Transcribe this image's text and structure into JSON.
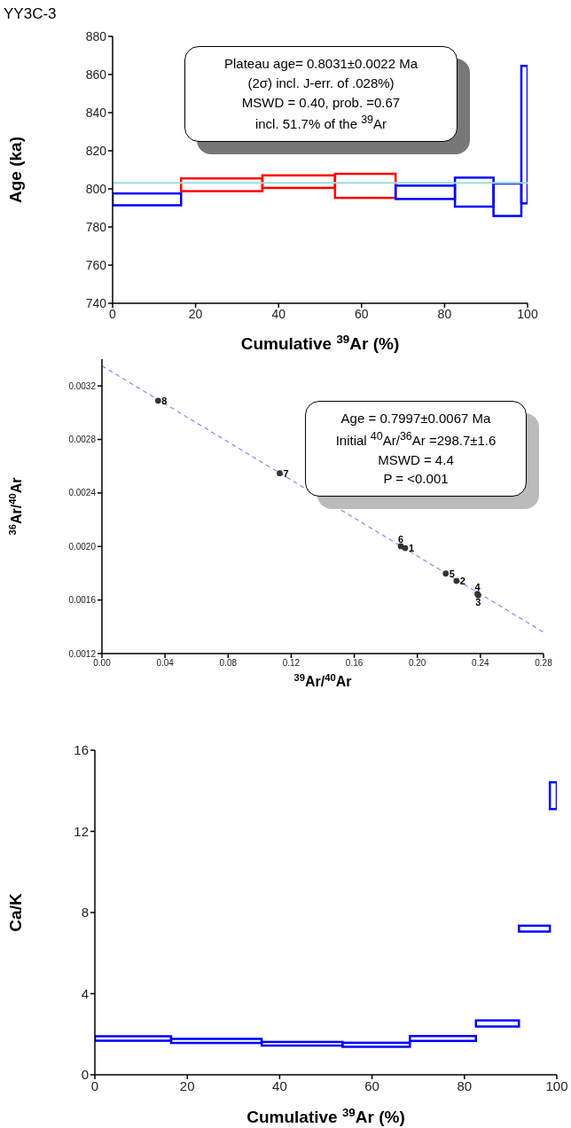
{
  "chart_data": [
    {
      "type": "histogram",
      "title": "YY3C-3",
      "xlabel": "Cumulative $^{39}$Ar (%)",
      "ylabel": "Age (ka)",
      "bins": [
        0,
        16.5,
        36.1,
        53.6,
        68.2,
        82.5,
        91.8,
        98.5,
        100
      ],
      "base": [
        791.4,
        798.8,
        800.5,
        795.3,
        794.7,
        790.7,
        785.8,
        792.4
      ],
      "values": [
        6.2,
        6.7,
        6.6,
        12.6,
        7.0,
        15.2,
        17.0,
        72.1
      ],
      "colors": [
        "#0000ff",
        "#ff0000",
        "#ff0000",
        "#ff0000",
        "#0000ff",
        "#0000ff",
        "#0000ff",
        "#0000ff"
      ],
      "xlim": [
        0,
        100
      ],
      "xticks": [
        0,
        20,
        40,
        60,
        80,
        100
      ],
      "ylim": [
        740,
        880
      ],
      "yticks": [
        740,
        760,
        780,
        800,
        820,
        840,
        860,
        880
      ],
      "ref_lines": [
        {
          "axis": "y",
          "value": 803.1,
          "color": "#99dddd"
        }
      ],
      "annotations": [
        "Plateau age= 0.8031±0.0022 Ma",
        "(2σ) incl. J-err. of .028%)",
        "MSWD = 0.40, prob. =0.67",
        "incl. 51.7% of the $^{39}$Ar"
      ]
    },
    {
      "type": "scatter",
      "xlabel": "$^{39}$Ar/$^{40}$Ar",
      "ylabel": "$^{36}$Ar/$^{40}$Ar",
      "series": [
        {
          "type": "scatter",
          "marker": "circle",
          "color": "#333333",
          "x": [
            0.1923,
            0.2248,
            0.2386,
            0.2381,
            0.218,
            0.1895,
            0.1127,
            0.0356
          ],
          "values": [
            0.001988,
            0.001743,
            0.001635,
            0.001646,
            0.001798,
            0.002002,
            0.002547,
            0.00309
          ]
        },
        {
          "type": "line",
          "color": "#8888ee",
          "line_style": "dashed",
          "x": [
            0,
            0.28
          ],
          "values": [
            0.00335,
            0.00136
          ]
        }
      ],
      "xlim": [
        0,
        0.28
      ],
      "xticks": [
        {
          "value": 0,
          "label": "0.00"
        },
        {
          "value": 0.04,
          "label": "0.04"
        },
        {
          "value": 0.08,
          "label": "0.08"
        },
        {
          "value": 0.12,
          "label": "0.12"
        },
        {
          "value": 0.16,
          "label": "0.16"
        },
        {
          "value": 0.2,
          "label": "0.20"
        },
        {
          "value": 0.24,
          "label": "0.24"
        },
        {
          "value": 0.28,
          "label": "0.28"
        }
      ],
      "ylim": [
        0.0012,
        0.0034
      ],
      "yticks": [
        {
          "value": 0.0012,
          "label": "0.0012"
        },
        {
          "value": 0.0016,
          "label": "0.0016"
        },
        {
          "value": 0.002,
          "label": "0.0020"
        },
        {
          "value": 0.0024,
          "label": "0.0024"
        },
        {
          "value": 0.0028,
          "label": "0.0028"
        },
        {
          "value": 0.0032,
          "label": "0.0032"
        }
      ],
      "annotations": [
        "Age = 0.7997±0.0067 Ma",
        "Initial $^{40}$Ar/$^{36}$Ar =298.7±1.6",
        "MSWD = 4.4",
        "P = <0.001",
        {
          "text": "1",
          "x": 0.1923,
          "y": 0.001988
        },
        {
          "text": "2",
          "x": 0.2248,
          "y": 0.001743
        },
        {
          "text": "3",
          "x": 0.2386,
          "y": 0.001635
        },
        {
          "text": "4",
          "x": 0.2381,
          "y": 0.001646
        },
        {
          "text": "5",
          "x": 0.218,
          "y": 0.001798
        },
        {
          "text": "6",
          "x": 0.1895,
          "y": 0.002002
        },
        {
          "text": "7",
          "x": 0.1127,
          "y": 0.002547
        },
        {
          "text": "8",
          "x": 0.0356,
          "y": 0.00309
        }
      ]
    },
    {
      "type": "histogram",
      "xlabel": "Cumulative $^{39}$Ar (%)",
      "ylabel": "Ca/K",
      "bins": [
        0,
        16.5,
        36.1,
        53.6,
        68.2,
        82.5,
        91.8,
        98.5,
        100
      ],
      "base": [
        1.68,
        1.57,
        1.44,
        1.38,
        1.67,
        2.38,
        7.06,
        13.1
      ],
      "values": [
        0.22,
        0.2,
        0.18,
        0.2,
        0.24,
        0.3,
        0.29,
        1.32
      ],
      "colors": [
        "#0000ff",
        "#0000ff",
        "#0000ff",
        "#0000ff",
        "#0000ff",
        "#0000ff",
        "#0000ff",
        "#0000ff"
      ],
      "xlim": [
        0,
        100
      ],
      "xticks": [
        0,
        20,
        40,
        60,
        80,
        100
      ],
      "ylim": [
        0,
        16
      ],
      "yticks": [
        0,
        4,
        8,
        12,
        16
      ]
    }
  ]
}
